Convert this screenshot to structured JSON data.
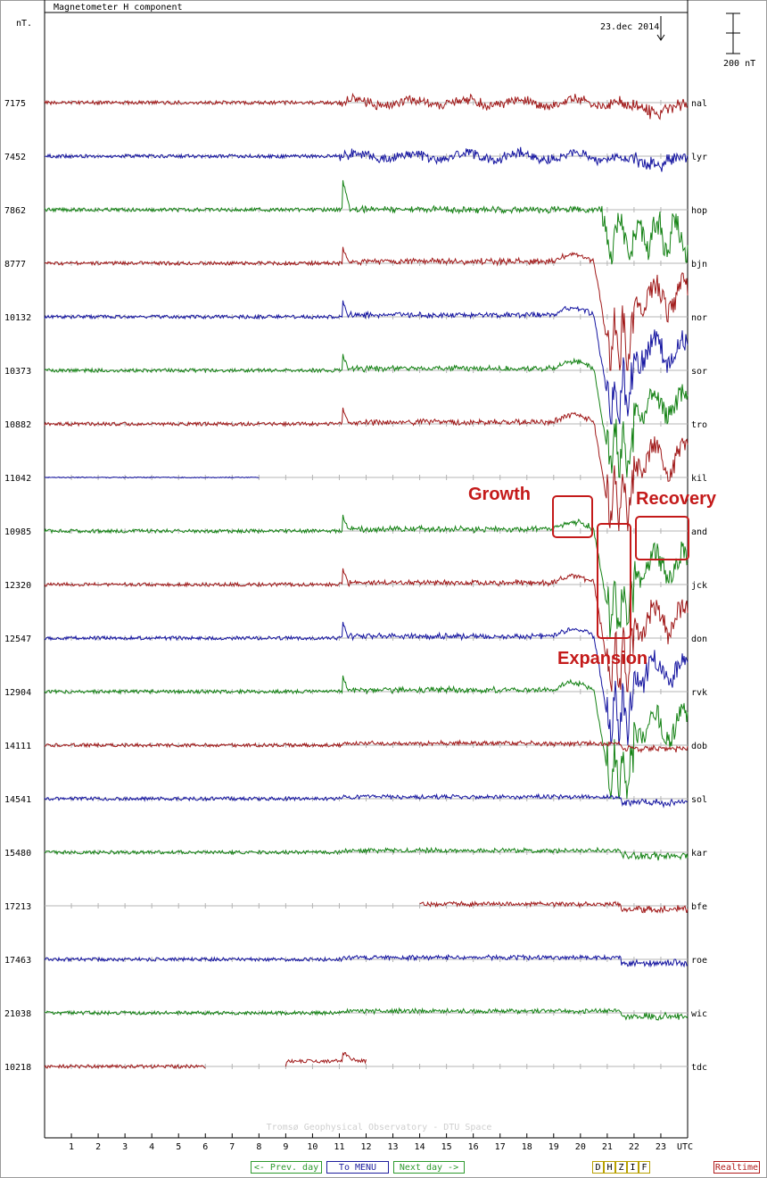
{
  "title": "Magnetometer H component",
  "unit_label": "nT.",
  "date_label": "23.dec 2014",
  "scale_label": "200 nT",
  "footer_credit": "Tromsø Geophysical Observatory - DTU Space",
  "buttons": {
    "prev": "<- Prev. day",
    "menu": "To MENU",
    "next": "Next day ->",
    "components": [
      "D",
      "H",
      "Z",
      "I",
      "F"
    ],
    "realtime": "Realtime"
  },
  "annotations": {
    "growth": "Growth",
    "expansion": "Expansion",
    "recovery": "Recovery"
  },
  "colors": {
    "red": "#a01818",
    "blue": "#1414a0",
    "green": "#148214",
    "annotation": "#c41a1a",
    "grid": "#b4b4b4"
  },
  "chart_data": {
    "type": "line",
    "title": "Magnetometer H component",
    "xlabel": "UTC",
    "ylabel": "nT.",
    "x_ticks": [
      1,
      2,
      3,
      4,
      5,
      6,
      7,
      8,
      9,
      10,
      11,
      12,
      13,
      14,
      15,
      16,
      17,
      18,
      19,
      20,
      21,
      22,
      23
    ],
    "xlim": [
      0,
      24
    ],
    "scale_bar_nT": 200,
    "grid": true,
    "series": [
      {
        "name": "nal",
        "baseline": 7175,
        "color": "red",
        "coverage": [
          0,
          24
        ],
        "pattern": "small"
      },
      {
        "name": "lyr",
        "baseline": 7452,
        "color": "blue",
        "coverage": [
          0,
          24
        ],
        "pattern": "small"
      },
      {
        "name": "hop",
        "baseline": 7862,
        "color": "green",
        "coverage": [
          0,
          24
        ],
        "pattern": "medium"
      },
      {
        "name": "bjn",
        "baseline": 8777,
        "color": "red",
        "coverage": [
          0,
          24
        ],
        "pattern": "large"
      },
      {
        "name": "nor",
        "baseline": 10132,
        "color": "blue",
        "coverage": [
          0,
          24
        ],
        "pattern": "large"
      },
      {
        "name": "sor",
        "baseline": 10373,
        "color": "green",
        "coverage": [
          0,
          24
        ],
        "pattern": "large"
      },
      {
        "name": "tro",
        "baseline": 10882,
        "color": "red",
        "coverage": [
          0,
          24
        ],
        "pattern": "large"
      },
      {
        "name": "kil",
        "baseline": 11042,
        "color": "blue",
        "coverage": [
          0,
          8
        ],
        "pattern": "flat"
      },
      {
        "name": "and",
        "baseline": 10985,
        "color": "green",
        "coverage": [
          0,
          24
        ],
        "pattern": "large"
      },
      {
        "name": "jck",
        "baseline": 12320,
        "color": "red",
        "coverage": [
          0,
          24
        ],
        "pattern": "large"
      },
      {
        "name": "don",
        "baseline": 12547,
        "color": "blue",
        "coverage": [
          0,
          24
        ],
        "pattern": "large"
      },
      {
        "name": "rvk",
        "baseline": 12904,
        "color": "green",
        "coverage": [
          0,
          24
        ],
        "pattern": "large"
      },
      {
        "name": "dob",
        "baseline": 14111,
        "color": "red",
        "coverage": [
          0,
          24
        ],
        "pattern": "mild"
      },
      {
        "name": "sol",
        "baseline": 14541,
        "color": "blue",
        "coverage": [
          0,
          24
        ],
        "pattern": "mild"
      },
      {
        "name": "kar",
        "baseline": 15480,
        "color": "green",
        "coverage": [
          0,
          24
        ],
        "pattern": "mild"
      },
      {
        "name": "bfe",
        "baseline": 17213,
        "color": "red",
        "coverage": [
          14,
          24
        ],
        "pattern": "mild"
      },
      {
        "name": "roe",
        "baseline": 17463,
        "color": "blue",
        "coverage": [
          0,
          24
        ],
        "pattern": "mild"
      },
      {
        "name": "wic",
        "baseline": 21038,
        "color": "green",
        "coverage": [
          0,
          24
        ],
        "pattern": "mild"
      },
      {
        "name": "tdc",
        "baseline": 10218,
        "color": "red",
        "coverage": [
          [
            0,
            6
          ],
          [
            9,
            12
          ]
        ],
        "pattern": "gap"
      }
    ]
  }
}
